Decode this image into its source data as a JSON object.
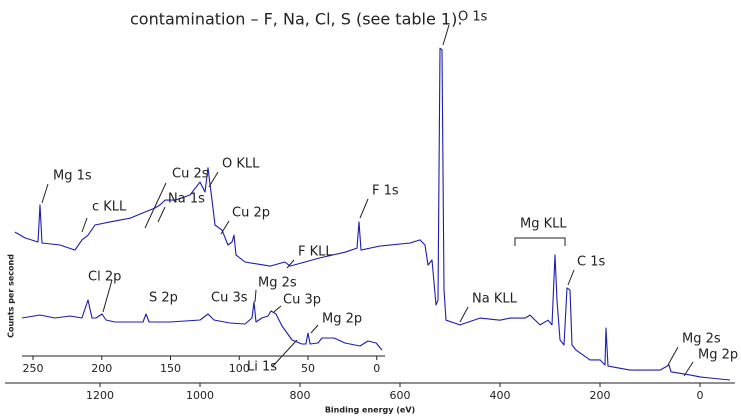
{
  "text": "contamination – F, Na, Cl, S (see table 1).",
  "chart_data": [
    {
      "type": "line",
      "x_label": "Binding energy (eV)",
      "y_label": "Counts per second",
      "color": "#1c1cb4",
      "xlim": [
        1390,
        -70
      ],
      "ylim": [
        0,
        100
      ],
      "xticks": [
        1200,
        1000,
        800,
        600,
        400,
        200,
        0
      ],
      "x": [
        1370,
        1350,
        1324,
        1320,
        1316,
        1280,
        1250,
        1236,
        1224,
        1210,
        1180,
        1140,
        1110,
        1090,
        1080,
        1070,
        1050,
        1020,
        1000,
        990,
        984,
        976,
        970,
        956,
        944,
        936,
        932,
        928,
        910,
        860,
        830,
        820,
        760,
        710,
        686,
        682,
        678,
        640,
        580,
        560,
        550,
        544,
        536,
        528,
        524,
        520,
        516,
        512,
        508,
        480,
        440,
        400,
        380,
        350,
        340,
        320,
        304,
        296,
        290,
        286,
        280,
        272,
        266,
        260,
        256,
        248,
        220,
        200,
        190,
        188,
        184,
        140,
        80,
        62,
        58,
        20,
        0,
        -20,
        -60
      ],
      "values": [
        43.5,
        41.8,
        40.6,
        51.5,
        40.3,
        39.7,
        38.2,
        41.2,
        42.6,
        45.6,
        46.5,
        47.6,
        49.4,
        50.6,
        51.5,
        52.9,
        52.9,
        54.4,
        58.2,
        55.3,
        62.4,
        52.9,
        45.6,
        44.1,
        39.7,
        40.6,
        42.6,
        36.8,
        34.7,
        33.5,
        34.7,
        33.5,
        35.9,
        37.6,
        38.8,
        46.5,
        38.2,
        39.4,
        40.3,
        41.2,
        39.7,
        33.8,
        35.3,
        22.1,
        23.5,
        97.6,
        97.1,
        26.5,
        17.6,
        16.2,
        18.2,
        17.6,
        18.2,
        18.2,
        19.1,
        16.2,
        17.6,
        16.2,
        36.8,
        23.5,
        11.8,
        10.3,
        27.1,
        26.5,
        10.3,
        8.8,
        5.9,
        5.9,
        4.4,
        15.3,
        4.1,
        2.9,
        2.9,
        4.4,
        2.4,
        1.5,
        0.9,
        0.6,
        0
      ],
      "annotations": [
        "O 1s",
        "Mg 1s",
        "c KLL",
        "Cu 2s",
        "Na 1s",
        "O KLL",
        "Cu 2p",
        "F KLL",
        "F 1s",
        "Mg KLL",
        "C 1s",
        "Na KLL",
        "Mg 2s",
        "Mg 2p"
      ]
    },
    {
      "type": "line",
      "color": "#1c1cb4",
      "xlim": [
        258,
        -6
      ],
      "ylim": [
        0,
        100
      ],
      "xticks": [
        250,
        200,
        150,
        100,
        50,
        0
      ],
      "x": [
        258,
        244.9,
        234,
        223.1,
        214.4,
        210,
        207.1,
        204.2,
        199.8,
        196.9,
        190.4,
        179.5,
        170,
        167.8,
        165.6,
        150.4,
        128.5,
        122.7,
        118.4,
        106.7,
        95.8,
        90.7,
        89.3,
        87.8,
        83.5,
        79.1,
        76.9,
        73.3,
        68.9,
        61.6,
        54.4,
        51.5,
        50,
        48.5,
        42.7,
        39.8,
        31.1,
        23.1,
        12.2,
        6.4,
        0.5,
        -3.8
      ],
      "values": [
        37.8,
        41.1,
        37.8,
        40,
        37.8,
        57.8,
        37.8,
        37.8,
        42.2,
        35.6,
        33.3,
        33.3,
        33.3,
        42.2,
        33.3,
        33.3,
        35.6,
        42.2,
        35.6,
        32.2,
        31.1,
        37.8,
        55.6,
        33.3,
        37.8,
        40,
        45.6,
        42.2,
        28.9,
        13.3,
        8.9,
        8.9,
        21.1,
        8.9,
        10,
        15.6,
        15.6,
        10,
        6.7,
        12.2,
        10,
        2.2
      ],
      "annotations": [
        "Cl 2p",
        "S 2p",
        "Cu 3s",
        "Mg 2s",
        "Cu 3p",
        "Mg 2p",
        "Li 1s"
      ]
    }
  ]
}
